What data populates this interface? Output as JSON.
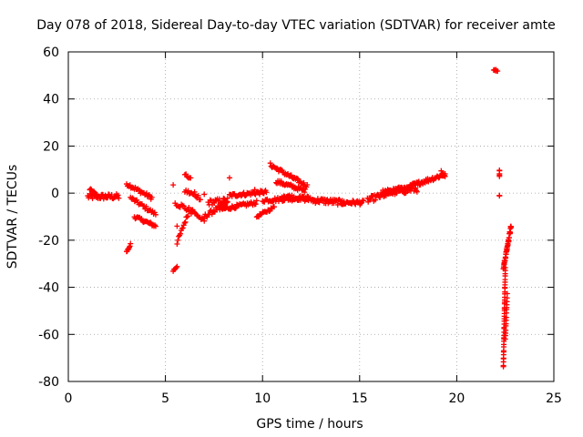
{
  "chart_data": {
    "type": "scatter",
    "title": "Day 078 of 2018, Sidereal Day-to-day VTEC variation (SDTVAR) for receiver amte",
    "xlabel": "GPS time / hours",
    "ylabel": "SDTVAR / TECUs",
    "xlim": [
      0,
      25
    ],
    "ylim": [
      -80,
      60
    ],
    "xticks": [
      0,
      5,
      10,
      15,
      20,
      25
    ],
    "yticks": [
      -80,
      -60,
      -40,
      -20,
      0,
      20,
      40,
      60
    ],
    "grid": true,
    "marker": "+",
    "series_color": "#ff0000",
    "segments": [
      {
        "x0": 1.0,
        "x1": 2.6,
        "y0": -1.5,
        "y1": -1.5,
        "n": 40,
        "spread": 1.2
      },
      {
        "x0": 1.1,
        "x1": 1.5,
        "y0": 1.5,
        "y1": -1.0,
        "n": 10,
        "spread": 0.8
      },
      {
        "x0": 3.0,
        "x1": 3.2,
        "y0": -25,
        "y1": -22,
        "n": 8,
        "spread": 0.6
      },
      {
        "x0": 3.0,
        "x1": 4.3,
        "y0": 4,
        "y1": -2,
        "n": 30,
        "spread": 0.8
      },
      {
        "x0": 3.2,
        "x1": 4.5,
        "y0": -2,
        "y1": -9,
        "n": 25,
        "spread": 0.8
      },
      {
        "x0": 3.4,
        "x1": 4.5,
        "y0": -10,
        "y1": -14,
        "n": 25,
        "spread": 0.7
      },
      {
        "x0": 5.4,
        "x1": 5.6,
        "y0": -33,
        "y1": -31,
        "n": 6,
        "spread": 0.5
      },
      {
        "x0": 5.6,
        "x1": 6.2,
        "y0": -21,
        "y1": -8,
        "n": 15,
        "spread": 0.8
      },
      {
        "x0": 5.5,
        "x1": 6.4,
        "y0": -4,
        "y1": -8,
        "n": 15,
        "spread": 1.2
      },
      {
        "x0": 6.0,
        "x1": 6.3,
        "y0": 8,
        "y1": 6,
        "n": 6,
        "spread": 0.5
      },
      {
        "x0": 6.0,
        "x1": 6.8,
        "y0": 1,
        "y1": -2,
        "n": 15,
        "spread": 1.0
      },
      {
        "x0": 6.3,
        "x1": 7.0,
        "y0": -7,
        "y1": -12,
        "n": 14,
        "spread": 0.8
      },
      {
        "x0": 7.0,
        "x1": 8.2,
        "y0": -10,
        "y1": -4,
        "n": 25,
        "spread": 1.0
      },
      {
        "x0": 7.2,
        "x1": 8.2,
        "y0": -4,
        "y1": -3,
        "n": 20,
        "spread": 1.2
      },
      {
        "x0": 8.3,
        "x1": 10.2,
        "y0": -1,
        "y1": 0.5,
        "n": 45,
        "spread": 0.8
      },
      {
        "x0": 7.8,
        "x1": 9.7,
        "y0": -7,
        "y1": -4,
        "n": 40,
        "spread": 0.8
      },
      {
        "x0": 9.7,
        "x1": 10.6,
        "y0": -10,
        "y1": -6,
        "n": 18,
        "spread": 0.6
      },
      {
        "x0": 10.0,
        "x1": 12.4,
        "y0": -3,
        "y1": -2,
        "n": 50,
        "spread": 0.9
      },
      {
        "x0": 10.4,
        "x1": 12.3,
        "y0": 12,
        "y1": 3,
        "n": 45,
        "spread": 0.8
      },
      {
        "x0": 10.7,
        "x1": 12.2,
        "y0": 5,
        "y1": 1,
        "n": 35,
        "spread": 0.8
      },
      {
        "x0": 11.0,
        "x1": 12.6,
        "y0": -1,
        "y1": -3,
        "n": 35,
        "spread": 1.0
      },
      {
        "x0": 12.6,
        "x1": 14.2,
        "y0": -3,
        "y1": -4,
        "n": 40,
        "spread": 1.2
      },
      {
        "x0": 14.1,
        "x1": 15.2,
        "y0": -4,
        "y1": -4,
        "n": 25,
        "spread": 1.0
      },
      {
        "x0": 15.4,
        "x1": 17.6,
        "y0": -3,
        "y1": 3,
        "n": 55,
        "spread": 1.3
      },
      {
        "x0": 16.2,
        "x1": 18.0,
        "y0": 0,
        "y1": 2,
        "n": 45,
        "spread": 1.5
      },
      {
        "x0": 17.6,
        "x1": 19.4,
        "y0": 3,
        "y1": 8,
        "n": 45,
        "spread": 0.9
      },
      {
        "x0": 19.2,
        "x1": 19.4,
        "y0": 9,
        "y1": 7,
        "n": 6,
        "spread": 0.6
      },
      {
        "x0": 21.9,
        "x1": 22.1,
        "y0": 52.5,
        "y1": 52,
        "n": 6,
        "spread": 0.3
      },
      {
        "x0": 22.2,
        "x1": 22.2,
        "y0": 10,
        "y1": 7,
        "n": 5,
        "spread": 0.3
      },
      {
        "x0": 22.2,
        "x1": 22.2,
        "y0": -1,
        "y1": -1,
        "n": 2,
        "spread": 0.2
      },
      {
        "x0": 22.4,
        "x1": 22.5,
        "y0": -74,
        "y1": -32,
        "n": 40,
        "spread": 0.5
      },
      {
        "x0": 22.5,
        "x1": 22.6,
        "y0": -62,
        "y1": -43,
        "n": 15,
        "spread": 0.4
      },
      {
        "x0": 22.4,
        "x1": 22.8,
        "y0": -32,
        "y1": -14,
        "n": 45,
        "spread": 1.0
      }
    ],
    "outliers": [
      {
        "x": 5.4,
        "y": 3.5
      },
      {
        "x": 5.6,
        "y": -14
      },
      {
        "x": 8.3,
        "y": 6.5
      },
      {
        "x": 7.0,
        "y": -0.5
      },
      {
        "x": 9.6,
        "y": 1.5
      },
      {
        "x": 6.5,
        "y": 0.5
      }
    ]
  }
}
